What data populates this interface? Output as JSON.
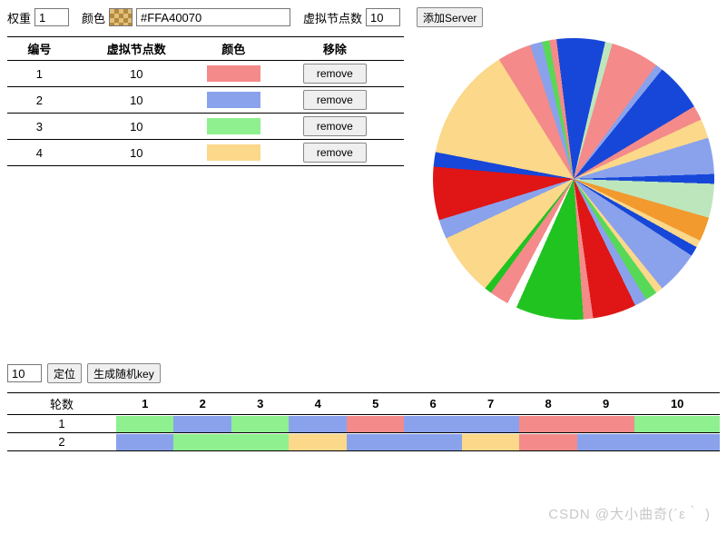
{
  "top": {
    "weight_label": "权重",
    "weight_value": "1",
    "color_label": "颜色",
    "color_hex": "#FFA40070",
    "vnodes_label": "虚拟节点数",
    "vnodes_value": "10",
    "add_btn": "添加Server"
  },
  "server_table": {
    "headers": [
      "编号",
      "虚拟节点数",
      "颜色",
      "移除"
    ],
    "rows": [
      {
        "id": "1",
        "vnodes": "10",
        "color": "#f48a8a",
        "remove": "remove"
      },
      {
        "id": "2",
        "vnodes": "10",
        "color": "#8aa2ec",
        "remove": "remove"
      },
      {
        "id": "3",
        "vnodes": "10",
        "color": "#8ef08e",
        "remove": "remove"
      },
      {
        "id": "4",
        "vnodes": "10",
        "color": "#fbd88a",
        "remove": "remove"
      }
    ]
  },
  "pie": {
    "type": "pie",
    "bg": "#ffffff",
    "slices": [
      {
        "angle": 28,
        "color": "#fbd88a"
      },
      {
        "angle": 14,
        "color": "#f48a8a"
      },
      {
        "angle": 5,
        "color": "#8aa2ec"
      },
      {
        "angle": 3,
        "color": "#57d957"
      },
      {
        "angle": 3,
        "color": "#f48a8a"
      },
      {
        "angle": 20,
        "color": "#1747d8"
      },
      {
        "angle": 3,
        "color": "#bde6bd"
      },
      {
        "angle": 20,
        "color": "#f48a8a"
      },
      {
        "angle": 3,
        "color": "#8aa2ec"
      },
      {
        "angle": 20,
        "color": "#1747d8"
      },
      {
        "angle": 6,
        "color": "#f48a8a"
      },
      {
        "angle": 8,
        "color": "#fbd88a"
      },
      {
        "angle": 15,
        "color": "#8aa2ec"
      },
      {
        "angle": 4,
        "color": "#1747d8"
      },
      {
        "angle": 14,
        "color": "#bde6bd"
      },
      {
        "angle": 10,
        "color": "#f29a2e"
      },
      {
        "angle": 3,
        "color": "#fbd88a"
      },
      {
        "angle": 4,
        "color": "#1747d8"
      },
      {
        "angle": 18,
        "color": "#8aa2ec"
      },
      {
        "angle": 3,
        "color": "#fbd88a"
      },
      {
        "angle": 5,
        "color": "#57d957"
      },
      {
        "angle": 5,
        "color": "#8aa2ec"
      },
      {
        "angle": 18,
        "color": "#e01515"
      },
      {
        "angle": 4,
        "color": "#f48a8a"
      },
      {
        "angle": 28,
        "color": "#21c321"
      },
      {
        "angle": 4,
        "color": "#ffffff"
      },
      {
        "angle": 8,
        "color": "#f48a8a"
      },
      {
        "angle": 3,
        "color": "#21c321"
      },
      {
        "angle": 26,
        "color": "#fbd88a"
      },
      {
        "angle": 8,
        "color": "#8aa2ec"
      },
      {
        "angle": 22,
        "color": "#e01515"
      },
      {
        "angle": 6,
        "color": "#1747d8"
      },
      {
        "angle": 16,
        "color": "#fbd88a"
      }
    ]
  },
  "ctrl2": {
    "count_value": "10",
    "locate_btn": "定位",
    "gen_btn": "生成随机key"
  },
  "rounds": {
    "round_label": "轮数",
    "cols": [
      "1",
      "2",
      "3",
      "4",
      "5",
      "6",
      "7",
      "8",
      "9",
      "10"
    ],
    "rows": [
      {
        "n": "1",
        "c": [
          "#8ef08e",
          "#8aa2ec",
          "#8ef08e",
          "#8aa2ec",
          "#f48a8a",
          "#8aa2ec",
          "#8aa2ec",
          "#f48a8a",
          "#f48a8a",
          "#8ef08e"
        ]
      },
      {
        "n": "2",
        "c": [
          "#8aa2ec",
          "#8ef08e",
          "#8ef08e",
          "#fbd88a",
          "#8aa2ec",
          "#8aa2ec",
          "#fbd88a",
          "#f48a8a",
          "#8aa2ec",
          "#8aa2ec"
        ]
      }
    ]
  },
  "watermark": "CSDN @大小曲奇(´ε｀ )"
}
